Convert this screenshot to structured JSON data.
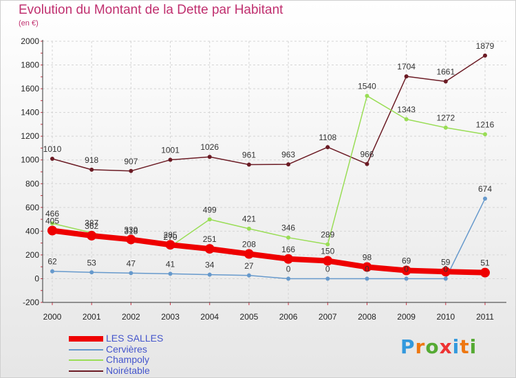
{
  "header": {
    "title": "Evolution du Montant de la Dette par Habitant",
    "unit": "(en €)"
  },
  "chart_data": {
    "type": "line",
    "categories": [
      "2000",
      "2001",
      "2002",
      "2003",
      "2004",
      "2005",
      "2006",
      "2007",
      "2008",
      "2009",
      "2010",
      "2011"
    ],
    "ylim": [
      -200,
      2000
    ],
    "yticks": [
      -200,
      0,
      200,
      400,
      600,
      800,
      1000,
      1200,
      1400,
      1600,
      1800,
      2000
    ],
    "grid": true,
    "legend_position": "bottom-left",
    "series": [
      {
        "name": "Noirétable",
        "color": "#6b1b24",
        "values": [
          1010,
          918,
          907,
          1001,
          1026,
          961,
          963,
          1108,
          966,
          1704,
          1661,
          1879
        ]
      },
      {
        "name": "Champoly",
        "color": "#99dd55",
        "values": [
          466,
          387,
          318,
          270,
          499,
          421,
          346,
          289,
          1540,
          1343,
          1272,
          1216
        ]
      },
      {
        "name": "Cervières",
        "color": "#6699cc",
        "values": [
          62,
          53,
          47,
          41,
          34,
          27,
          0,
          0,
          0,
          0,
          0,
          674
        ]
      },
      {
        "name": "LES SALLES",
        "color": "#ee0000",
        "values": [
          405,
          362,
          330,
          285,
          251,
          208,
          166,
          150,
          98,
          69,
          59,
          51
        ]
      }
    ]
  },
  "legend": [
    {
      "name": "LES SALLES",
      "color": "#ee0000"
    },
    {
      "name": "Cervières",
      "color": "#6699cc"
    },
    {
      "name": "Champoly",
      "color": "#99dd55"
    },
    {
      "name": "Noirétable",
      "color": "#6b1b24"
    }
  ],
  "logo": {
    "letters": [
      "P",
      "r",
      "o",
      "x",
      "i",
      "t",
      "i"
    ],
    "colors": [
      "#3399dd",
      "#ee7711",
      "#55aa33",
      "#ee3333",
      "#3399dd",
      "#ee7711",
      "#55aa33"
    ]
  }
}
